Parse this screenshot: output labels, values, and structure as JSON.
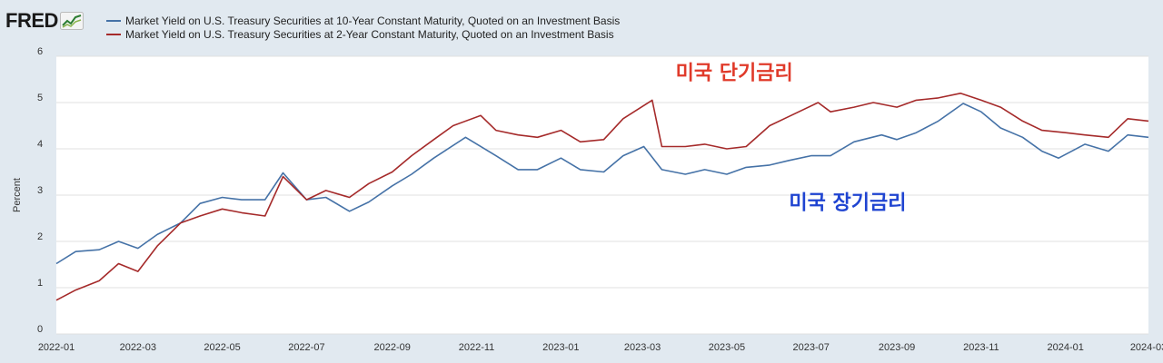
{
  "header": {
    "logo_text": "FRED",
    "logo_icon": "fred-chart-icon"
  },
  "chart_data": {
    "type": "line",
    "ylabel": "Percent",
    "ylim": [
      0,
      6
    ],
    "yticks": [
      0,
      1,
      2,
      3,
      4,
      5,
      6
    ],
    "xlim": [
      "2022-01-01",
      "2024-03-01"
    ],
    "xticks": [
      "2022-01",
      "2022-03",
      "2022-05",
      "2022-07",
      "2022-09",
      "2022-11",
      "2023-01",
      "2023-03",
      "2023-05",
      "2023-07",
      "2023-09",
      "2023-11",
      "2024-01",
      "2024-03"
    ],
    "grid": true,
    "legend_position": "top-left",
    "series": [
      {
        "name": "Market Yield on U.S. Treasury Securities at 10-Year Constant Maturity, Quoted on an Investment Basis",
        "color": "#4572a7",
        "points": [
          [
            "2022-01-01",
            1.52
          ],
          [
            "2022-01-15",
            1.78
          ],
          [
            "2022-02-01",
            1.82
          ],
          [
            "2022-02-15",
            2.0
          ],
          [
            "2022-03-01",
            1.85
          ],
          [
            "2022-03-15",
            2.15
          ],
          [
            "2022-04-01",
            2.4
          ],
          [
            "2022-04-15",
            2.82
          ],
          [
            "2022-05-01",
            2.95
          ],
          [
            "2022-05-15",
            2.9
          ],
          [
            "2022-06-01",
            2.9
          ],
          [
            "2022-06-14",
            3.48
          ],
          [
            "2022-07-01",
            2.9
          ],
          [
            "2022-07-15",
            2.95
          ],
          [
            "2022-08-01",
            2.65
          ],
          [
            "2022-08-15",
            2.85
          ],
          [
            "2022-09-01",
            3.2
          ],
          [
            "2022-09-15",
            3.45
          ],
          [
            "2022-10-01",
            3.8
          ],
          [
            "2022-10-24",
            4.25
          ],
          [
            "2022-11-15",
            3.85
          ],
          [
            "2022-12-01",
            3.55
          ],
          [
            "2022-12-15",
            3.55
          ],
          [
            "2023-01-01",
            3.8
          ],
          [
            "2023-01-15",
            3.55
          ],
          [
            "2023-02-01",
            3.5
          ],
          [
            "2023-02-15",
            3.85
          ],
          [
            "2023-03-02",
            4.05
          ],
          [
            "2023-03-15",
            3.55
          ],
          [
            "2023-04-01",
            3.45
          ],
          [
            "2023-04-15",
            3.55
          ],
          [
            "2023-05-01",
            3.45
          ],
          [
            "2023-05-15",
            3.6
          ],
          [
            "2023-06-01",
            3.65
          ],
          [
            "2023-06-15",
            3.75
          ],
          [
            "2023-07-01",
            3.85
          ],
          [
            "2023-07-15",
            3.85
          ],
          [
            "2023-08-01",
            4.15
          ],
          [
            "2023-08-21",
            4.3
          ],
          [
            "2023-09-01",
            4.2
          ],
          [
            "2023-09-15",
            4.35
          ],
          [
            "2023-10-01",
            4.6
          ],
          [
            "2023-10-19",
            4.98
          ],
          [
            "2023-11-01",
            4.8
          ],
          [
            "2023-11-15",
            4.45
          ],
          [
            "2023-12-01",
            4.25
          ],
          [
            "2023-12-15",
            3.95
          ],
          [
            "2023-12-27",
            3.8
          ],
          [
            "2024-01-15",
            4.1
          ],
          [
            "2024-02-01",
            3.95
          ],
          [
            "2024-02-15",
            4.3
          ],
          [
            "2024-03-01",
            4.25
          ]
        ]
      },
      {
        "name": "Market Yield on U.S. Treasury Securities at 2-Year Constant Maturity, Quoted on an Investment Basis",
        "color": "#a52a2a",
        "points": [
          [
            "2022-01-01",
            0.73
          ],
          [
            "2022-01-15",
            0.95
          ],
          [
            "2022-02-01",
            1.15
          ],
          [
            "2022-02-15",
            1.52
          ],
          [
            "2022-03-01",
            1.35
          ],
          [
            "2022-03-15",
            1.9
          ],
          [
            "2022-04-01",
            2.4
          ],
          [
            "2022-04-15",
            2.55
          ],
          [
            "2022-05-01",
            2.7
          ],
          [
            "2022-05-15",
            2.62
          ],
          [
            "2022-06-01",
            2.55
          ],
          [
            "2022-06-14",
            3.4
          ],
          [
            "2022-07-01",
            2.9
          ],
          [
            "2022-07-15",
            3.1
          ],
          [
            "2022-08-01",
            2.95
          ],
          [
            "2022-08-15",
            3.25
          ],
          [
            "2022-09-01",
            3.5
          ],
          [
            "2022-09-15",
            3.85
          ],
          [
            "2022-10-01",
            4.2
          ],
          [
            "2022-10-15",
            4.5
          ],
          [
            "2022-11-04",
            4.72
          ],
          [
            "2022-11-15",
            4.4
          ],
          [
            "2022-12-01",
            4.3
          ],
          [
            "2022-12-15",
            4.25
          ],
          [
            "2023-01-01",
            4.4
          ],
          [
            "2023-01-15",
            4.15
          ],
          [
            "2023-02-01",
            4.2
          ],
          [
            "2023-02-15",
            4.65
          ],
          [
            "2023-03-08",
            5.05
          ],
          [
            "2023-03-15",
            4.05
          ],
          [
            "2023-04-01",
            4.05
          ],
          [
            "2023-04-15",
            4.1
          ],
          [
            "2023-05-01",
            4.0
          ],
          [
            "2023-05-15",
            4.05
          ],
          [
            "2023-06-01",
            4.5
          ],
          [
            "2023-06-15",
            4.7
          ],
          [
            "2023-07-06",
            5.0
          ],
          [
            "2023-07-15",
            4.8
          ],
          [
            "2023-08-01",
            4.9
          ],
          [
            "2023-08-15",
            5.0
          ],
          [
            "2023-09-01",
            4.9
          ],
          [
            "2023-09-15",
            5.05
          ],
          [
            "2023-10-01",
            5.1
          ],
          [
            "2023-10-17",
            5.2
          ],
          [
            "2023-11-01",
            5.05
          ],
          [
            "2023-11-15",
            4.9
          ],
          [
            "2023-12-01",
            4.6
          ],
          [
            "2023-12-15",
            4.4
          ],
          [
            "2024-01-01",
            4.35
          ],
          [
            "2024-01-15",
            4.3
          ],
          [
            "2024-02-01",
            4.25
          ],
          [
            "2024-02-15",
            4.65
          ],
          [
            "2024-03-01",
            4.6
          ]
        ]
      }
    ],
    "annotations": [
      {
        "text": "미국 단기금리",
        "color": "#e03a2a",
        "x": "2023-03-25",
        "y": 5.5
      },
      {
        "text": "미국 장기금리",
        "color": "#1f44d1",
        "x": "2023-06-15",
        "y": 2.7
      }
    ]
  }
}
